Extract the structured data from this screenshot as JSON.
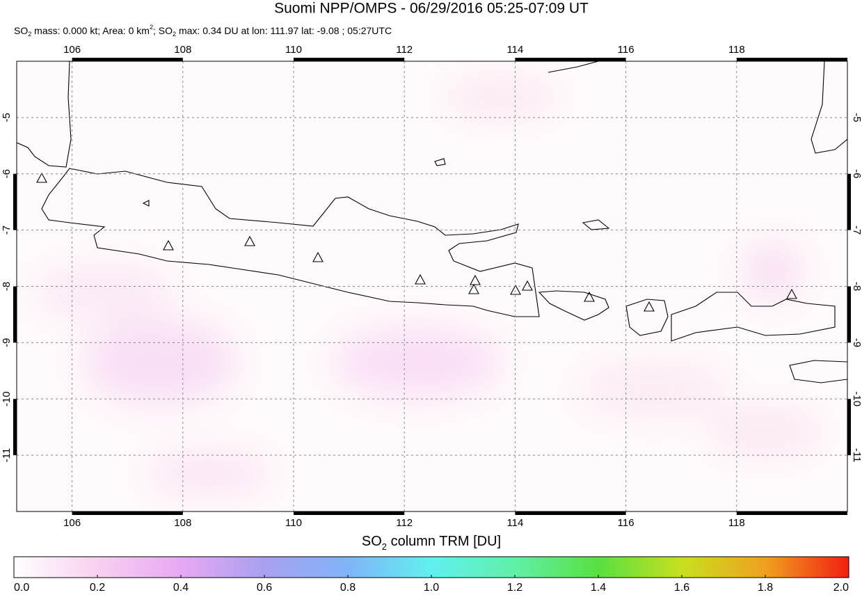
{
  "chart_data": {
    "type": "map",
    "title": "Suomi NPP/OMPS - 06/29/2016 05:25-07:09 UT",
    "subtitle_parts": [
      "SO",
      "2",
      " mass: 0.000 kt; Area: 0 km",
      "2",
      "; SO",
      "2",
      " max: 0.34 DU at lon: 111.97 lat: -9.08 ; 05:27UTC"
    ],
    "xlim": [
      105,
      120
    ],
    "ylim": [
      -12,
      -4
    ],
    "xticks": [
      106,
      108,
      110,
      112,
      114,
      116,
      118
    ],
    "yticks": [
      -5,
      -6,
      -7,
      -8,
      -9,
      -10,
      -11
    ],
    "grid": true,
    "colorbar": {
      "label_parts": [
        "SO",
        "2",
        " column TRM [DU]"
      ],
      "lim": [
        0,
        2
      ],
      "ticks": [
        {
          "value": 0,
          "label": "0.0"
        },
        {
          "value": 0.2,
          "label": "0.2"
        },
        {
          "value": 0.4,
          "label": "0.4"
        },
        {
          "value": 0.6,
          "label": "0.6"
        },
        {
          "value": 0.8,
          "label": "0.8"
        },
        {
          "value": 1,
          "label": "1.0"
        },
        {
          "value": 1.2,
          "label": "1.2"
        },
        {
          "value": 1.4,
          "label": "1.4"
        },
        {
          "value": 1.6,
          "label": "1.6"
        },
        {
          "value": 1.8,
          "label": "1.8"
        },
        {
          "value": 2,
          "label": "2.0"
        }
      ]
    }
  }
}
